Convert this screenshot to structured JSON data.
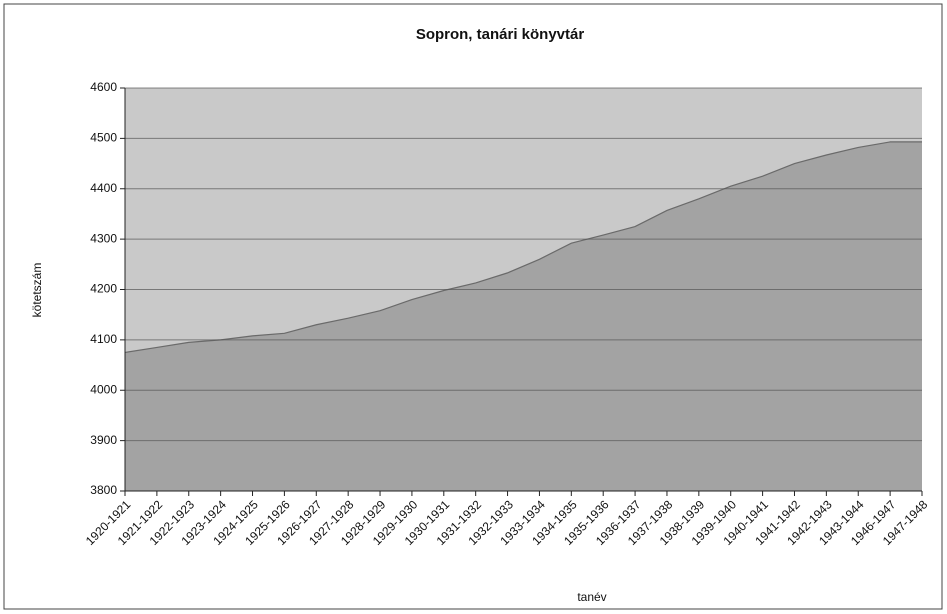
{
  "chart_data": {
    "type": "area",
    "title": "Sopron, tanári könyvtár",
    "x_label": "tanév",
    "y_label": "kötetszám",
    "categories": [
      "1920-1921",
      "1921-1922",
      "1922-1923",
      "1923-1924",
      "1924-1925",
      "1925-1926",
      "1926-1927",
      "1927-1928",
      "1928-1929",
      "1929-1930",
      "1930-1931",
      "1931-1932",
      "1932-1933",
      "1933-1934",
      "1934-1935",
      "1935-1936",
      "1936-1937",
      "1937-1938",
      "1938-1939",
      "1939-1940",
      "1940-1941",
      "1941-1942",
      "1942-1943",
      "1943-1944",
      "1946-1947",
      "1947-1948"
    ],
    "values": [
      4075,
      4085,
      4095,
      4100,
      4108,
      4113,
      4130,
      4143,
      4158,
      4180,
      4198,
      4213,
      4233,
      4260,
      4292,
      4308,
      4325,
      4357,
      4380,
      4405,
      4425,
      4450,
      4467,
      4482,
      4493,
      4493
    ],
    "color": "#a3a3a3",
    "line_color": "#6a6a6a",
    "plot_background": "#c9c9c9",
    "ylim": [
      3800,
      4600
    ],
    "yticks": [
      3800,
      3900,
      4000,
      4100,
      4200,
      4300,
      4400,
      4500,
      4600
    ],
    "grid": true
  }
}
